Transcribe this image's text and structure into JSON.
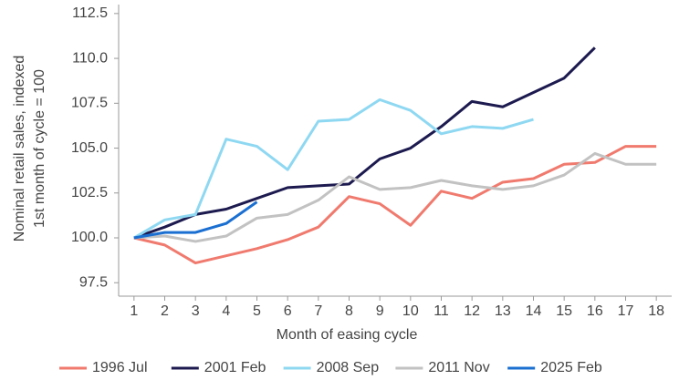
{
  "chart_data": {
    "type": "line",
    "ylabel": [
      "Nominal retail sales, indexed",
      "1st month of cycle = 100"
    ],
    "xlabel": "Month of easing cycle",
    "x": [
      1,
      2,
      3,
      4,
      5,
      6,
      7,
      8,
      9,
      10,
      11,
      12,
      13,
      14,
      15,
      16,
      17,
      18
    ],
    "xlim": [
      0.5,
      18.5
    ],
    "xticks": [
      1,
      2,
      3,
      4,
      5,
      6,
      7,
      8,
      9,
      10,
      11,
      12,
      13,
      14,
      15,
      16,
      17,
      18
    ],
    "ylim": [
      96.75,
      113
    ],
    "yticks": [
      97.5,
      {
        "value": 100,
        "label": "100.0"
      },
      102.5,
      {
        "value": 105,
        "label": "105.0"
      },
      107.5,
      {
        "value": 110,
        "label": "110.0"
      },
      112.5
    ],
    "grid": false,
    "legend": "bottom",
    "series": [
      {
        "name": "1996 Jul",
        "color": "#f07a6e",
        "values": [
          100,
          99.6,
          98.6,
          99.0,
          99.4,
          99.9,
          100.6,
          102.3,
          101.9,
          100.7,
          102.6,
          102.2,
          103.1,
          103.3,
          104.1,
          104.2,
          105.1,
          105.1
        ]
      },
      {
        "name": "2001 Feb",
        "color": "#1c1a4f",
        "values": [
          100,
          100.6,
          101.3,
          101.6,
          102.2,
          102.8,
          102.9,
          103.0,
          104.4,
          105.0,
          106.2,
          107.6,
          107.3,
          108.1,
          108.9,
          110.6,
          null,
          null
        ]
      },
      {
        "name": "2008 Sep",
        "color": "#8fd8f2",
        "values": [
          100,
          101.0,
          101.3,
          105.5,
          105.1,
          103.8,
          106.5,
          106.6,
          107.7,
          107.1,
          105.8,
          106.2,
          106.1,
          106.6,
          null,
          null,
          null,
          null
        ]
      },
      {
        "name": "2011 Nov",
        "color": "#c2c2c2",
        "values": [
          100,
          100.1,
          99.8,
          100.1,
          101.1,
          101.3,
          102.1,
          103.4,
          102.7,
          102.8,
          103.2,
          102.9,
          102.7,
          102.9,
          103.5,
          104.7,
          104.1,
          104.1
        ]
      },
      {
        "name": "2025 Feb",
        "color": "#1a6fd1",
        "values": [
          100,
          100.3,
          100.3,
          100.8,
          102.0,
          null,
          null,
          null,
          null,
          null,
          null,
          null,
          null,
          null,
          null,
          null,
          null,
          null
        ]
      }
    ]
  }
}
